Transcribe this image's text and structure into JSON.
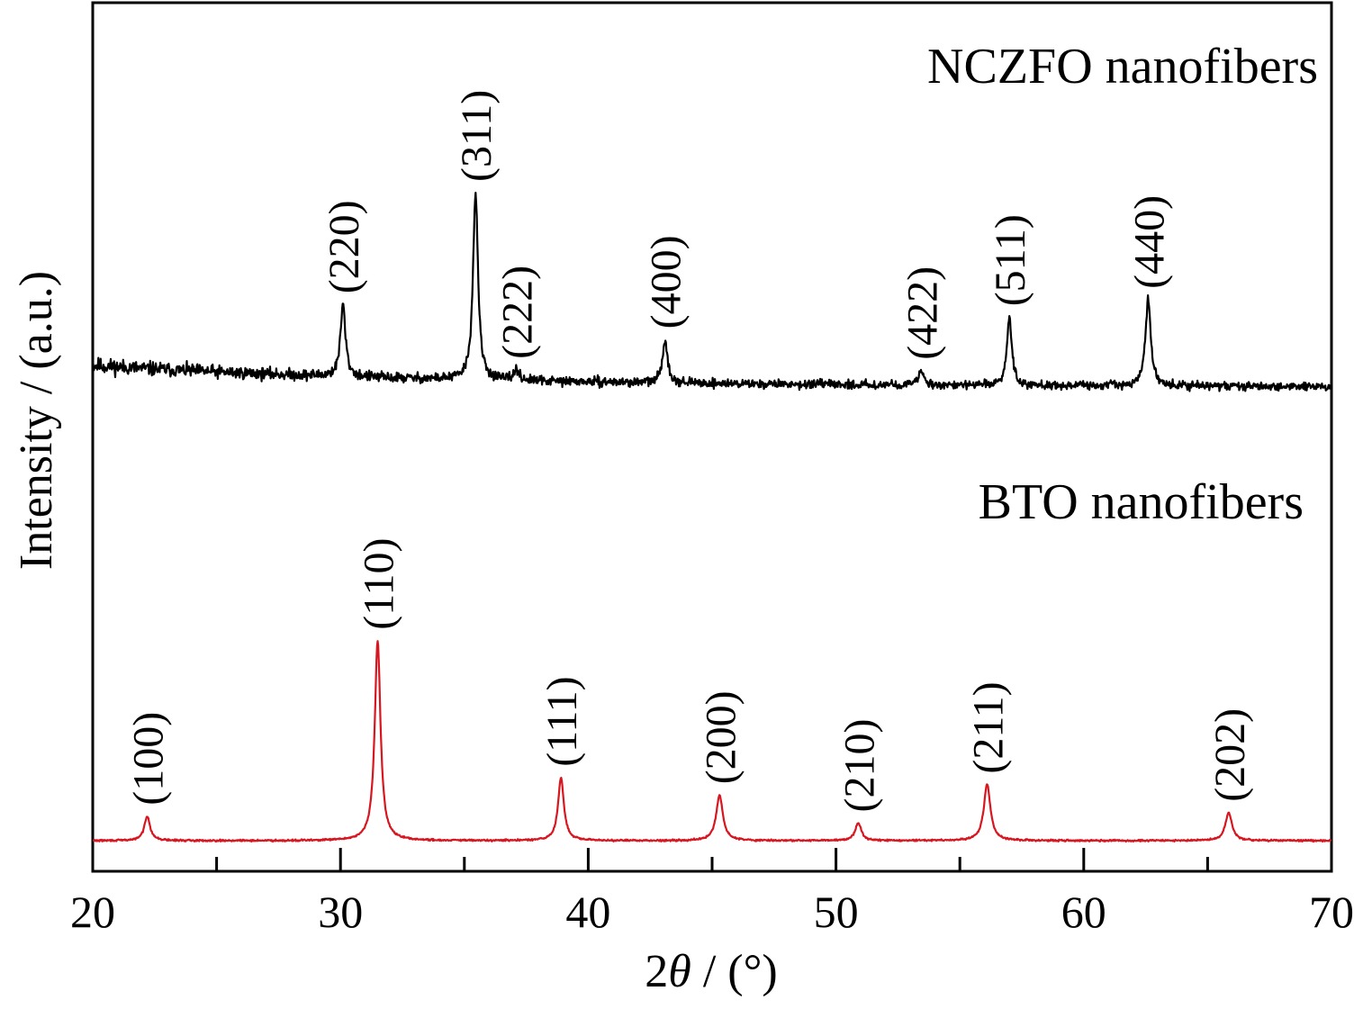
{
  "chart_data": {
    "type": "line",
    "xlabel": "2θ / (°)",
    "xlabel_prefix": "2",
    "xlabel_symbol": "θ",
    "xlabel_suffix": " / (°)",
    "ylabel": "Intensity / (a.u.)",
    "xlim": [
      20,
      70
    ],
    "y_ticks_shown": false,
    "grid": false,
    "xticks_major": [
      20,
      30,
      40,
      50,
      60,
      70
    ],
    "xtick_labels": [
      "20",
      "30",
      "40",
      "50",
      "60",
      "70"
    ],
    "xticks_minor": [
      25,
      35,
      45,
      55,
      65
    ],
    "series": [
      {
        "name": "NCZFO nanofibers",
        "color": "#000000",
        "label_position": "top-right",
        "baseline": 6,
        "noise": 1.1,
        "peaks": [
          {
            "x": 30.1,
            "height": 20,
            "width": 0.12,
            "label": "(220)"
          },
          {
            "x": 35.45,
            "height": 52,
            "width": 0.12,
            "label": "(311)"
          },
          {
            "x": 37.1,
            "height": 3,
            "width": 0.12,
            "label": "(222)"
          },
          {
            "x": 43.1,
            "height": 12,
            "width": 0.12,
            "label": "(400)"
          },
          {
            "x": 53.45,
            "height": 4,
            "width": 0.12,
            "label": "(422)"
          },
          {
            "x": 57.0,
            "height": 19,
            "width": 0.12,
            "label": "(511)"
          },
          {
            "x": 62.6,
            "height": 24,
            "width": 0.13,
            "label": "(440)"
          }
        ]
      },
      {
        "name": "BTO nanofibers",
        "color": "#d7161f",
        "label_position": "middle-right",
        "baseline": 0,
        "noise": 0.25,
        "peaks": [
          {
            "x": 22.2,
            "height": 7,
            "width": 0.14,
            "label": "(100)"
          },
          {
            "x": 31.5,
            "height": 57,
            "width": 0.14,
            "label": "(110)"
          },
          {
            "x": 38.9,
            "height": 18,
            "width": 0.14,
            "label": "(111)"
          },
          {
            "x": 45.3,
            "height": 13,
            "width": 0.16,
            "label": "(200)"
          },
          {
            "x": 50.9,
            "height": 5,
            "width": 0.15,
            "label": "(210)"
          },
          {
            "x": 56.1,
            "height": 16,
            "width": 0.16,
            "label": "(211)"
          },
          {
            "x": 65.85,
            "height": 8,
            "width": 0.16,
            "label": "(202)"
          }
        ]
      }
    ]
  }
}
